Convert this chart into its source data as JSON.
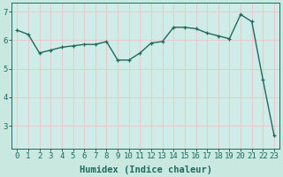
{
  "x": [
    0,
    1,
    2,
    3,
    4,
    5,
    6,
    7,
    8,
    9,
    10,
    11,
    12,
    13,
    14,
    15,
    16,
    17,
    18,
    19,
    20,
    21,
    22,
    23
  ],
  "y": [
    6.35,
    6.2,
    5.55,
    5.65,
    5.75,
    5.8,
    5.85,
    5.85,
    5.95,
    5.3,
    5.3,
    5.55,
    5.9,
    5.95,
    6.45,
    6.45,
    6.4,
    6.25,
    6.15,
    6.05,
    6.9,
    6.65,
    4.6,
    2.65
  ],
  "line_color": "#1e6b5e",
  "marker": "+",
  "markersize": 3.5,
  "linewidth": 1.0,
  "bg_color": "#c8e8e0",
  "grid_color": "#e8c8c8",
  "axis_bg": "#d0ece8",
  "xlabel": "Humidex (Indice chaleur)",
  "xlabel_fontsize": 7.5,
  "tick_fontsize": 6.5,
  "ylim": [
    2.2,
    7.3
  ],
  "xlim": [
    -0.5,
    23.5
  ],
  "yticks": [
    3,
    4,
    5,
    6,
    7
  ],
  "xticks": [
    0,
    1,
    2,
    3,
    4,
    5,
    6,
    7,
    8,
    9,
    10,
    11,
    12,
    13,
    14,
    15,
    16,
    17,
    18,
    19,
    20,
    21,
    22,
    23
  ]
}
